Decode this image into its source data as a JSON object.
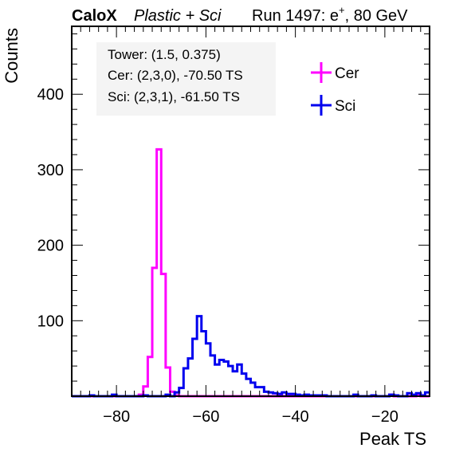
{
  "header": {
    "experiment": "CaloX",
    "material": "Plastic + Sci",
    "run_label": "Run 1497: e",
    "run_superscript": "+",
    "run_suffix": ", 80 GeV"
  },
  "info": {
    "tower": "Tower: (1.5, 0.375)",
    "cer": "Cer: (2,3,0), -70.50 TS",
    "sci": "Sci: (2,3,1), -61.50 TS"
  },
  "chart_data": {
    "type": "line",
    "title": "",
    "xlabel": "Peak TS",
    "ylabel": "Counts",
    "xlim": [
      -90,
      -10
    ],
    "ylim": [
      0,
      490
    ],
    "x_ticks": [
      -80,
      -60,
      -40,
      -20
    ],
    "y_ticks": [
      100,
      200,
      300,
      400
    ],
    "grid": false,
    "legend_position": "top-right",
    "bin_width": 1,
    "series": [
      {
        "name": "Cer",
        "color": "#ff00ff",
        "bins": [
          {
            "x": -75,
            "y": 2
          },
          {
            "x": -74,
            "y": 13
          },
          {
            "x": -73,
            "y": 52
          },
          {
            "x": -72,
            "y": 170
          },
          {
            "x": -71,
            "y": 327
          },
          {
            "x": -70,
            "y": 162
          },
          {
            "x": -69,
            "y": 38
          },
          {
            "x": -68,
            "y": 6
          },
          {
            "x": -67,
            "y": 1
          },
          {
            "x": -19,
            "y": 2
          },
          {
            "x": -13,
            "y": 2
          }
        ]
      },
      {
        "name": "Sci",
        "color": "#0000ee",
        "bins": [
          {
            "x": -86,
            "y": 1
          },
          {
            "x": -81,
            "y": 2
          },
          {
            "x": -74,
            "y": 1
          },
          {
            "x": -69,
            "y": 2
          },
          {
            "x": -67,
            "y": 5
          },
          {
            "x": -66,
            "y": 11
          },
          {
            "x": -65,
            "y": 37
          },
          {
            "x": -64,
            "y": 50
          },
          {
            "x": -63,
            "y": 76
          },
          {
            "x": -62,
            "y": 106
          },
          {
            "x": -61,
            "y": 86
          },
          {
            "x": -60,
            "y": 70
          },
          {
            "x": -59,
            "y": 54
          },
          {
            "x": -58,
            "y": 42
          },
          {
            "x": -57,
            "y": 48
          },
          {
            "x": -56,
            "y": 46
          },
          {
            "x": -55,
            "y": 40
          },
          {
            "x": -54,
            "y": 33
          },
          {
            "x": -53,
            "y": 42
          },
          {
            "x": -52,
            "y": 30
          },
          {
            "x": -51,
            "y": 23
          },
          {
            "x": -50,
            "y": 18
          },
          {
            "x": -49,
            "y": 12
          },
          {
            "x": -48,
            "y": 12
          },
          {
            "x": -47,
            "y": 6
          },
          {
            "x": -46,
            "y": 5
          },
          {
            "x": -45,
            "y": 4
          },
          {
            "x": -44,
            "y": 3
          },
          {
            "x": -43,
            "y": 5
          },
          {
            "x": -42,
            "y": 3
          },
          {
            "x": -41,
            "y": 3
          },
          {
            "x": -40,
            "y": 2
          },
          {
            "x": -39,
            "y": 1
          },
          {
            "x": -38,
            "y": 2
          },
          {
            "x": -37,
            "y": 1
          },
          {
            "x": -36,
            "y": 1
          },
          {
            "x": -35,
            "y": 1
          },
          {
            "x": -34,
            "y": 1
          },
          {
            "x": -27,
            "y": 2
          },
          {
            "x": -23,
            "y": 1
          },
          {
            "x": -19,
            "y": 2
          },
          {
            "x": -18,
            "y": 1
          },
          {
            "x": -15,
            "y": 4
          },
          {
            "x": -14,
            "y": 2
          },
          {
            "x": -13,
            "y": 4
          },
          {
            "x": -12,
            "y": 1
          },
          {
            "x": -11,
            "y": 5
          },
          {
            "x": -10,
            "y": 2
          }
        ]
      }
    ]
  }
}
